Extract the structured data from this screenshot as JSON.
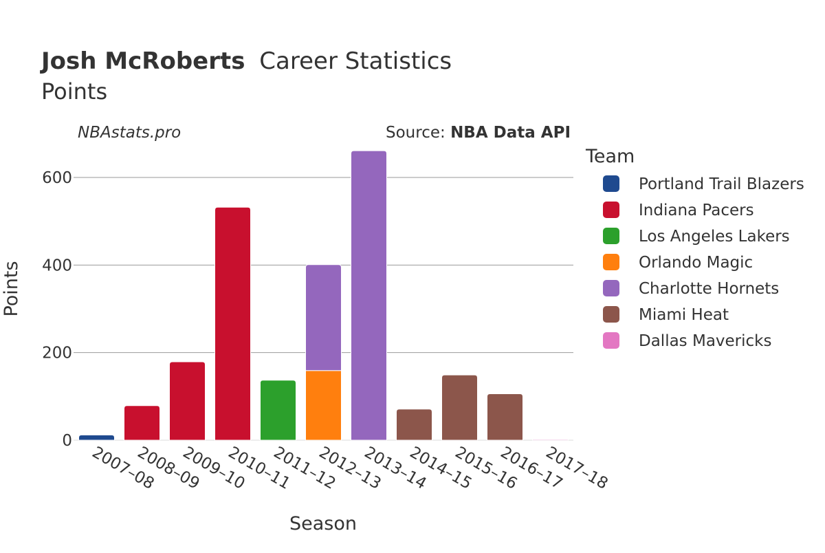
{
  "chart_data": {
    "type": "bar",
    "stacked": true,
    "title_player": "Josh McRoberts",
    "title_rest": "Career Statistics",
    "subtitle": "Points",
    "watermark": "NBAstats.pro",
    "source_prefix": "Source: ",
    "source_name": "NBA Data API",
    "xlabel": "Season",
    "ylabel": "Points",
    "ylim": [
      0,
      666
    ],
    "yticks": [
      0,
      200,
      400,
      600
    ],
    "grid": true,
    "legend_title": "Team",
    "legend_position": "right",
    "categories": [
      "2007–08",
      "2008–09",
      "2009–10",
      "2010–11",
      "2011–12",
      "2012–13",
      "2013–14",
      "2014–15",
      "2015–16",
      "2016–17",
      "2017–18"
    ],
    "series": [
      {
        "name": "Portland Trail Blazers",
        "color": "#1f4a8f",
        "values": [
          12,
          0,
          0,
          0,
          0,
          0,
          0,
          0,
          0,
          0,
          0
        ]
      },
      {
        "name": "Indiana Pacers",
        "color": "#c8102e",
        "values": [
          0,
          79,
          179,
          532,
          0,
          0,
          0,
          0,
          0,
          0,
          0
        ]
      },
      {
        "name": "Los Angeles Lakers",
        "color": "#2ca02c",
        "values": [
          0,
          0,
          0,
          0,
          137,
          0,
          0,
          0,
          0,
          0,
          0
        ]
      },
      {
        "name": "Orlando Magic",
        "color": "#ff7f0e",
        "values": [
          0,
          0,
          0,
          0,
          0,
          159,
          0,
          0,
          0,
          0,
          0
        ]
      },
      {
        "name": "Charlotte Hornets",
        "color": "#9467bd",
        "values": [
          0,
          0,
          0,
          0,
          0,
          242,
          661,
          0,
          0,
          0,
          0
        ]
      },
      {
        "name": "Miami Heat",
        "color": "#8c564b",
        "values": [
          0,
          0,
          0,
          0,
          0,
          0,
          0,
          71,
          149,
          106,
          0
        ]
      },
      {
        "name": "Dallas Mavericks",
        "color": "#e377c2",
        "values": [
          0,
          0,
          0,
          0,
          0,
          0,
          0,
          0,
          0,
          0,
          2
        ]
      }
    ]
  }
}
